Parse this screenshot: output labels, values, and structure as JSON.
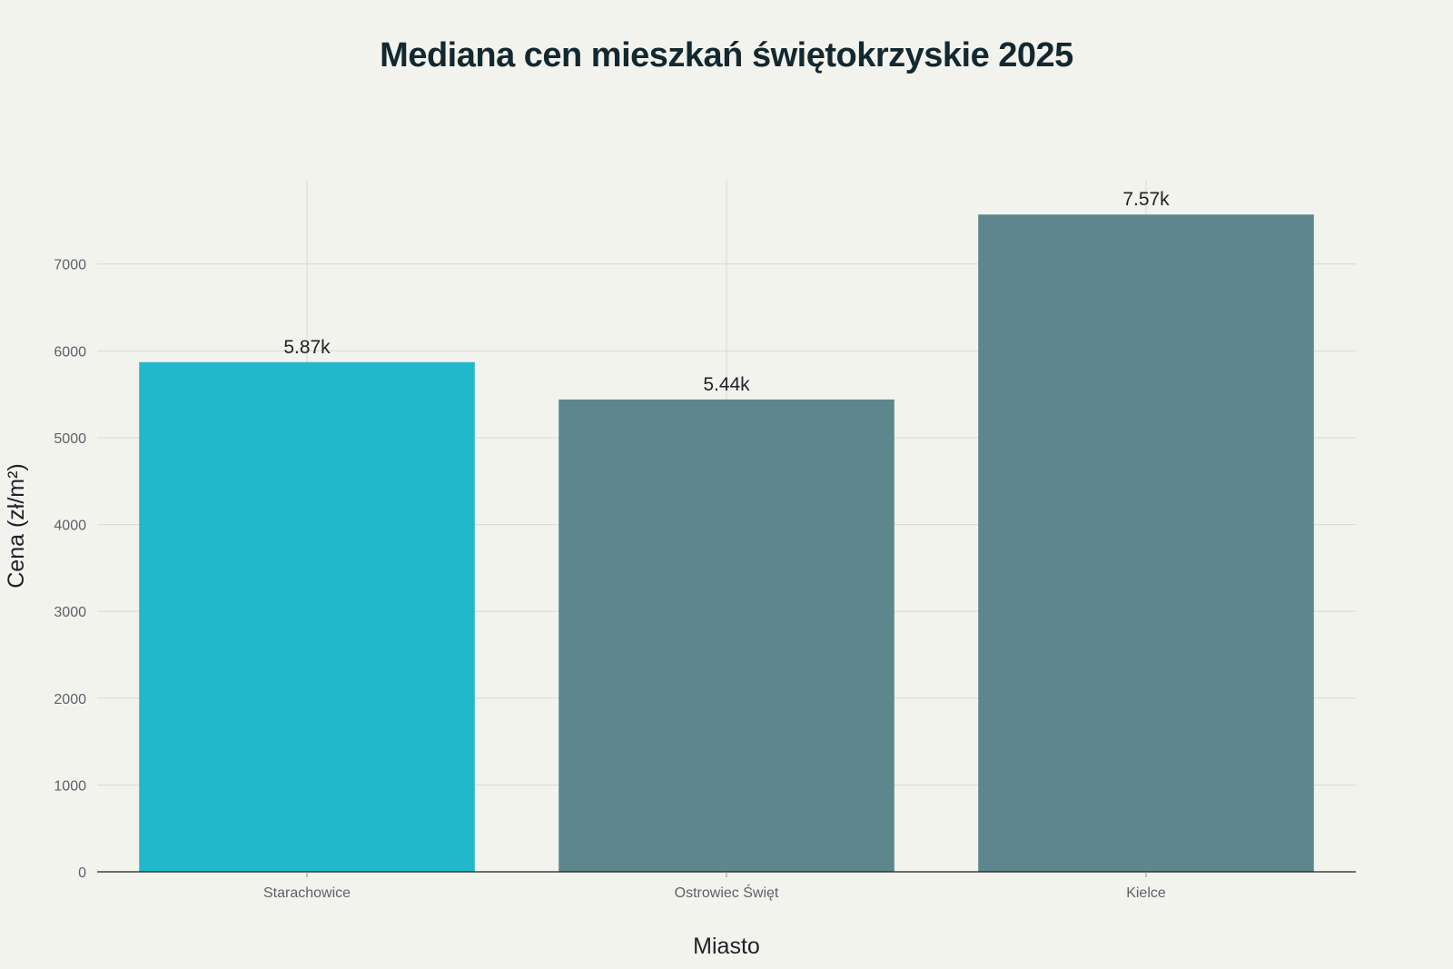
{
  "chart_data": {
    "type": "bar",
    "title": "Mediana cen mieszkań świętokrzyskie 2025",
    "xlabel": "Miasto",
    "ylabel": "Cena (zł/m²)",
    "categories": [
      "Starachowice",
      "Ostrowiec Święt",
      "Kielce"
    ],
    "values": [
      5870,
      5440,
      7570
    ],
    "data_labels": [
      "5.87k",
      "5.44k",
      "7.57k"
    ],
    "bar_colors": [
      "#21b8cc",
      "#5e878d",
      "#5e878d"
    ],
    "ylim": [
      0,
      7970
    ],
    "yticks": [
      0,
      1000,
      2000,
      3000,
      4000,
      5000,
      6000,
      7000
    ],
    "grid": true,
    "legend": "none"
  }
}
